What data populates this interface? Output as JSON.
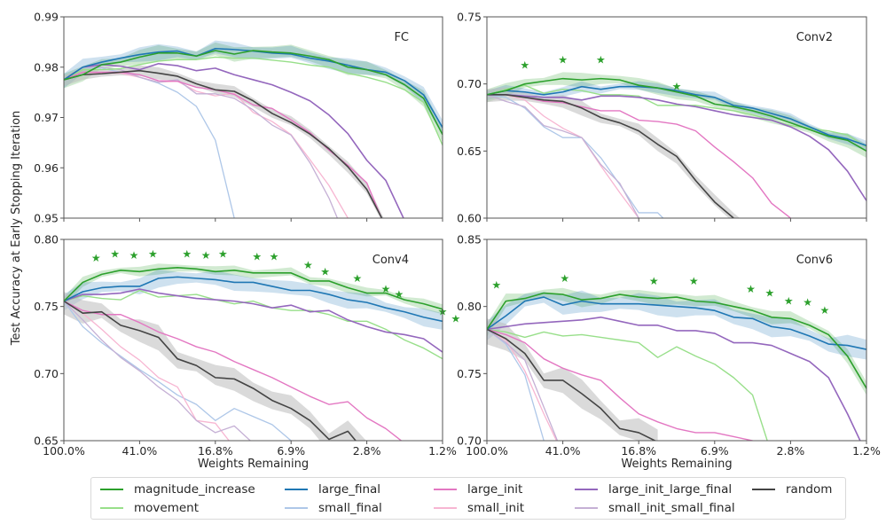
{
  "chart_data": {
    "type": "line",
    "ylabel_shared": "Test Accuracy at Early Stopping Iteration",
    "xlabel": "Weights Remaining",
    "x_tick_labels": [
      "100.0%",
      "41.0%",
      "16.8%",
      "6.9%",
      "2.8%",
      "1.2%"
    ],
    "x_scale": "log (pruning iterations 0..20, 20% per iteration)",
    "series_styles": {
      "magnitude_increase": {
        "color": "#2ca02c",
        "label": "magnitude_increase"
      },
      "movement": {
        "color": "#98df8a",
        "label": "movement"
      },
      "large_final": {
        "color": "#1f77b4",
        "label": "large_final"
      },
      "small_final": {
        "color": "#aec7e8",
        "label": "small_final"
      },
      "large_init": {
        "color": "#e377c2",
        "label": "large_init"
      },
      "small_init": {
        "color": "#f7b6d2",
        "label": "small_init"
      },
      "large_init_large_final": {
        "color": "#9467bd",
        "label": "large_init_large_final"
      },
      "small_init_small_final": {
        "color": "#c5b0d5",
        "label": "small_init_small_final"
      },
      "random": {
        "color": "#444444",
        "label": "random"
      }
    },
    "panels": [
      {
        "title": "FC",
        "ylim": [
          0.95,
          0.99
        ],
        "y_ticks": [
          "0.95",
          "0.96",
          "0.97",
          "0.98",
          "0.99"
        ],
        "show_xlabel": false,
        "stars": [],
        "bands": {
          "magnitude_increase": 0.0012,
          "large_final": 0.0012,
          "random": 0.0009
        },
        "series": {
          "magnitude_increase": [
            0.9775,
            0.9785,
            0.9805,
            0.981,
            0.982,
            0.9828,
            0.9828,
            0.9822,
            0.9833,
            0.9826,
            0.9833,
            0.983,
            0.9828,
            0.9822,
            0.9815,
            0.98,
            0.9795,
            0.9785,
            0.9765,
            0.9738,
            0.9666
          ],
          "movement": [
            0.9775,
            0.9795,
            0.9795,
            0.9797,
            0.9805,
            0.9812,
            0.9815,
            0.9815,
            0.982,
            0.9818,
            0.9818,
            0.9814,
            0.981,
            0.9804,
            0.98,
            0.9788,
            0.978,
            0.977,
            0.9755,
            0.973,
            0.9645
          ],
          "large_final": [
            0.9775,
            0.98,
            0.981,
            0.9818,
            0.9825,
            0.983,
            0.9832,
            0.9822,
            0.9837,
            0.9835,
            0.9832,
            0.9828,
            0.9826,
            0.9818,
            0.9812,
            0.9804,
            0.9795,
            0.979,
            0.9773,
            0.9745,
            0.968
          ],
          "small_final": [
            0.9775,
            0.98,
            0.9798,
            0.979,
            0.978,
            0.9768,
            0.975,
            0.9722,
            0.9655,
            0.95,
            0.94
          ],
          "large_init": [
            0.9775,
            0.979,
            0.979,
            0.979,
            0.9785,
            0.9773,
            0.9772,
            0.976,
            0.9755,
            0.9746,
            0.9725,
            0.9718,
            0.9695,
            0.967,
            0.9635,
            0.9605,
            0.957,
            0.948
          ],
          "small_init": [
            0.9775,
            0.979,
            0.9788,
            0.9788,
            0.978,
            0.977,
            0.9772,
            0.9752,
            0.9743,
            0.9748,
            0.971,
            0.9692,
            0.9666,
            0.9616,
            0.9565,
            0.95,
            0.94
          ],
          "large_init_large_final": [
            0.9775,
            0.98,
            0.9805,
            0.9802,
            0.9795,
            0.9807,
            0.9803,
            0.9793,
            0.9798,
            0.9785,
            0.9775,
            0.9765,
            0.975,
            0.9733,
            0.9705,
            0.9668,
            0.9615,
            0.9575,
            0.9495
          ],
          "small_init_small_final": [
            0.9775,
            0.98,
            0.98,
            0.9795,
            0.978,
            0.977,
            0.9775,
            0.9747,
            0.9747,
            0.9738,
            0.9715,
            0.9685,
            0.9665,
            0.961,
            0.954,
            0.945
          ],
          "random": [
            0.9775,
            0.9785,
            0.9787,
            0.979,
            0.9793,
            0.9788,
            0.9782,
            0.9767,
            0.9755,
            0.9752,
            0.9733,
            0.9708,
            0.969,
            0.9667,
            0.9638,
            0.9602,
            0.9557,
            0.9485
          ]
        }
      },
      {
        "title": "Conv2",
        "ylim": [
          0.6,
          0.75
        ],
        "y_ticks": [
          "0.60",
          "0.65",
          "0.70",
          "0.75"
        ],
        "show_xlabel": false,
        "stars": [
          [
            2,
            0.714
          ],
          [
            4,
            0.718
          ],
          [
            6,
            0.718
          ],
          [
            10,
            0.698
          ]
        ],
        "bands": {
          "magnitude_increase": 0.004,
          "large_final": 0.003,
          "random": 0.004
        },
        "series": {
          "magnitude_increase": [
            0.692,
            0.695,
            0.7,
            0.702,
            0.704,
            0.703,
            0.704,
            0.703,
            0.699,
            0.697,
            0.694,
            0.691,
            0.685,
            0.683,
            0.68,
            0.676,
            0.671,
            0.666,
            0.661,
            0.658,
            0.65
          ],
          "movement": [
            0.692,
            0.696,
            0.699,
            0.693,
            0.696,
            0.695,
            0.692,
            0.692,
            0.691,
            0.684,
            0.684,
            0.684,
            0.682,
            0.68,
            0.677,
            0.673,
            0.669,
            0.667,
            0.665,
            0.662,
            0.653
          ],
          "large_final": [
            0.692,
            0.695,
            0.694,
            0.692,
            0.694,
            0.698,
            0.696,
            0.698,
            0.698,
            0.697,
            0.695,
            0.692,
            0.69,
            0.684,
            0.682,
            0.678,
            0.674,
            0.668,
            0.662,
            0.659,
            0.654
          ],
          "small_final": [
            0.692,
            0.69,
            0.682,
            0.668,
            0.66,
            0.66,
            0.645,
            0.625,
            0.604,
            0.604,
            0.59
          ],
          "large_init": [
            0.692,
            0.692,
            0.69,
            0.687,
            0.686,
            0.683,
            0.68,
            0.68,
            0.673,
            0.672,
            0.67,
            0.665,
            0.653,
            0.642,
            0.63,
            0.611,
            0.6,
            0.59
          ],
          "small_init": [
            0.692,
            0.692,
            0.688,
            0.676,
            0.667,
            0.66,
            0.639,
            0.619,
            0.6,
            0.59
          ],
          "large_init_large_final": [
            0.692,
            0.692,
            0.691,
            0.69,
            0.69,
            0.688,
            0.691,
            0.691,
            0.69,
            0.688,
            0.685,
            0.683,
            0.68,
            0.677,
            0.675,
            0.673,
            0.668,
            0.661,
            0.651,
            0.635,
            0.613
          ],
          "small_init_small_final": [
            0.692,
            0.687,
            0.683,
            0.669,
            0.665,
            0.66,
            0.64,
            0.626,
            0.6,
            0.59
          ],
          "random": [
            0.692,
            0.692,
            0.69,
            0.688,
            0.687,
            0.682,
            0.675,
            0.671,
            0.665,
            0.655,
            0.646,
            0.628,
            0.612,
            0.6,
            0.59
          ]
        }
      },
      {
        "title": "Conv4",
        "ylim": [
          0.65,
          0.8
        ],
        "y_ticks": [
          "0.65",
          "0.70",
          "0.75",
          "0.80"
        ],
        "show_xlabel": true,
        "stars": [
          [
            1.7,
            0.786
          ],
          [
            2.7,
            0.789
          ],
          [
            3.7,
            0.788
          ],
          [
            4.7,
            0.789
          ],
          [
            6.5,
            0.789
          ],
          [
            7.5,
            0.788
          ],
          [
            8.4,
            0.789
          ],
          [
            10.2,
            0.787
          ],
          [
            11.1,
            0.787
          ],
          [
            12.9,
            0.781
          ],
          [
            13.8,
            0.776
          ],
          [
            15.5,
            0.771
          ],
          [
            17,
            0.763
          ],
          [
            17.7,
            0.759
          ],
          [
            20,
            0.746
          ],
          [
            20.7,
            0.741
          ]
        ],
        "bands": {
          "magnitude_increase": 0.003,
          "large_final": 0.005,
          "random": 0.007
        },
        "series": {
          "magnitude_increase": [
            0.754,
            0.768,
            0.774,
            0.777,
            0.776,
            0.778,
            0.779,
            0.778,
            0.776,
            0.777,
            0.775,
            0.775,
            0.775,
            0.769,
            0.769,
            0.764,
            0.76,
            0.76,
            0.755,
            0.752,
            0.748,
            0.741,
            0.735,
            0.734,
            0.73
          ],
          "movement": [
            0.754,
            0.758,
            0.756,
            0.755,
            0.762,
            0.757,
            0.758,
            0.759,
            0.755,
            0.752,
            0.754,
            0.749,
            0.747,
            0.747,
            0.744,
            0.739,
            0.739,
            0.733,
            0.725,
            0.719,
            0.711,
            0.698,
            0.689,
            0.681,
            0.672
          ],
          "large_final": [
            0.754,
            0.761,
            0.764,
            0.765,
            0.765,
            0.771,
            0.772,
            0.771,
            0.77,
            0.768,
            0.768,
            0.765,
            0.762,
            0.762,
            0.759,
            0.755,
            0.753,
            0.749,
            0.746,
            0.742,
            0.739,
            0.735,
            0.731,
            0.725,
            0.72
          ],
          "small_final": [
            0.754,
            0.735,
            0.723,
            0.713,
            0.703,
            0.694,
            0.684,
            0.677,
            0.665,
            0.674,
            0.668,
            0.662,
            0.65
          ],
          "large_init": [
            0.754,
            0.747,
            0.744,
            0.744,
            0.738,
            0.731,
            0.726,
            0.72,
            0.716,
            0.709,
            0.703,
            0.697,
            0.69,
            0.683,
            0.677,
            0.679,
            0.667,
            0.659,
            0.648
          ],
          "small_init": [
            0.754,
            0.745,
            0.733,
            0.72,
            0.71,
            0.697,
            0.69,
            0.665,
            0.663,
            0.645
          ],
          "large_init_large_final": [
            0.754,
            0.759,
            0.759,
            0.76,
            0.763,
            0.76,
            0.758,
            0.756,
            0.755,
            0.754,
            0.752,
            0.749,
            0.751,
            0.746,
            0.747,
            0.74,
            0.735,
            0.731,
            0.729,
            0.726,
            0.716,
            0.701,
            0.685,
            0.666
          ],
          "small_init_small_final": [
            0.754,
            0.74,
            0.725,
            0.712,
            0.702,
            0.69,
            0.68,
            0.665,
            0.656,
            0.661,
            0.648
          ],
          "random": [
            0.754,
            0.745,
            0.746,
            0.736,
            0.732,
            0.727,
            0.711,
            0.706,
            0.697,
            0.696,
            0.689,
            0.68,
            0.674,
            0.665,
            0.651,
            0.657,
            0.64
          ]
        }
      },
      {
        "title": "Conv6",
        "ylim": [
          0.7,
          0.85
        ],
        "y_ticks": [
          "0.70",
          "0.75",
          "0.80",
          "0.85"
        ],
        "show_xlabel": true,
        "stars": [
          [
            0.5,
            0.816
          ],
          [
            4.1,
            0.821
          ],
          [
            8.8,
            0.819
          ],
          [
            10.9,
            0.819
          ],
          [
            13.9,
            0.813
          ],
          [
            14.9,
            0.81
          ],
          [
            15.9,
            0.804
          ],
          [
            16.9,
            0.803
          ],
          [
            17.8,
            0.797
          ]
        ],
        "bands": {
          "magnitude_increase": 0.004,
          "large_final": 0.006,
          "random": 0.008
        },
        "series": {
          "magnitude_increase": [
            0.783,
            0.804,
            0.806,
            0.81,
            0.809,
            0.805,
            0.806,
            0.809,
            0.807,
            0.806,
            0.807,
            0.804,
            0.803,
            0.8,
            0.797,
            0.792,
            0.791,
            0.786,
            0.779,
            0.763,
            0.739,
            0.69
          ],
          "movement": [
            0.783,
            0.781,
            0.777,
            0.781,
            0.778,
            0.779,
            0.777,
            0.775,
            0.773,
            0.762,
            0.77,
            0.763,
            0.757,
            0.747,
            0.734,
            0.69
          ],
          "large_final": [
            0.783,
            0.793,
            0.804,
            0.807,
            0.801,
            0.804,
            0.802,
            0.802,
            0.802,
            0.801,
            0.8,
            0.799,
            0.797,
            0.792,
            0.791,
            0.785,
            0.783,
            0.778,
            0.772,
            0.771,
            0.768,
            0.764,
            0.752,
            0.734,
            0.69
          ],
          "small_final": [
            0.783,
            0.772,
            0.749,
            0.7,
            0.69
          ],
          "large_init": [
            0.783,
            0.779,
            0.773,
            0.761,
            0.754,
            0.749,
            0.745,
            0.732,
            0.72,
            0.714,
            0.709,
            0.706,
            0.706,
            0.703,
            0.7,
            0.69
          ],
          "small_init": [
            0.783,
            0.775,
            0.752,
            0.72,
            0.69
          ],
          "large_init_large_final": [
            0.783,
            0.785,
            0.787,
            0.788,
            0.789,
            0.79,
            0.792,
            0.789,
            0.786,
            0.786,
            0.782,
            0.782,
            0.78,
            0.773,
            0.773,
            0.771,
            0.765,
            0.759,
            0.747,
            0.72,
            0.69
          ],
          "small_init_small_final": [
            0.783,
            0.773,
            0.76,
            0.725,
            0.69
          ],
          "random": [
            0.783,
            0.776,
            0.765,
            0.745,
            0.745,
            0.735,
            0.724,
            0.709,
            0.706,
            0.699
          ]
        }
      }
    ],
    "legend": {
      "placement": "bottom-center",
      "rows": [
        [
          "magnitude_increase",
          "large_final",
          "large_init",
          "large_init_large_final",
          "random"
        ],
        [
          "movement",
          "small_final",
          "small_init",
          "small_init_small_final"
        ]
      ]
    }
  }
}
